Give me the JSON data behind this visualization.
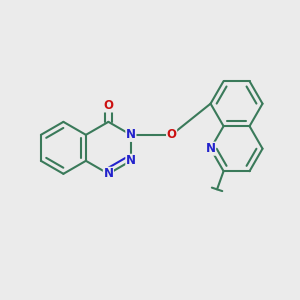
{
  "bg_color": "#ebebeb",
  "bond_color": "#3a7a5a",
  "N_color": "#2222cc",
  "O_color": "#cc1111",
  "line_width": 1.5,
  "dbo": 0.055,
  "font_size": 8.5,
  "fig_width": 3.0,
  "fig_height": 3.0,
  "dpi": 100,
  "xlim": [
    0.0,
    6.8
  ],
  "ylim": [
    1.2,
    6.5
  ]
}
